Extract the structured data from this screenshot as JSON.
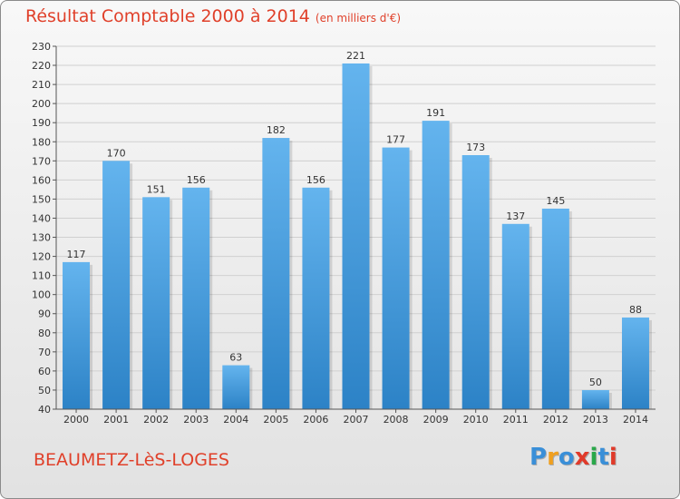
{
  "title": "Résultat Comptable 2000 à 2014",
  "subtitle": "(en milliers d'€)",
  "place": "BEAUMETZ-LèS-LOGES",
  "logo": {
    "letters": [
      "P",
      "r",
      "o",
      "x",
      "i",
      "t",
      "i"
    ],
    "colors": [
      "#3a8fd8",
      "#f0a020",
      "#3a8fd8",
      "#e03a2a",
      "#2aa84a",
      "#3a8fd8",
      "#e03a2a"
    ]
  },
  "colors": {
    "bar_light": "#64b4ee",
    "bar_dark": "#2c82c6",
    "accent": "#e0402a"
  },
  "chart_data": {
    "type": "bar",
    "title": "Résultat Comptable 2000 à 2014",
    "subtitle": "(en milliers d'€)",
    "categories": [
      "2000",
      "2001",
      "2002",
      "2003",
      "2004",
      "2005",
      "2006",
      "2007",
      "2008",
      "2009",
      "2010",
      "2011",
      "2012",
      "2013",
      "2014"
    ],
    "values": [
      117,
      170,
      151,
      156,
      63,
      182,
      156,
      221,
      177,
      191,
      173,
      137,
      145,
      50,
      88
    ],
    "ylim": [
      40,
      230
    ],
    "ytick_step": 10,
    "yticks": [
      "40",
      "50",
      "60",
      "70",
      "80",
      "90",
      "100",
      "110",
      "120",
      "130",
      "140",
      "150",
      "160",
      "170",
      "180",
      "190",
      "200",
      "210",
      "220",
      "230"
    ],
    "xlabel": "",
    "ylabel": "",
    "grid": true
  }
}
